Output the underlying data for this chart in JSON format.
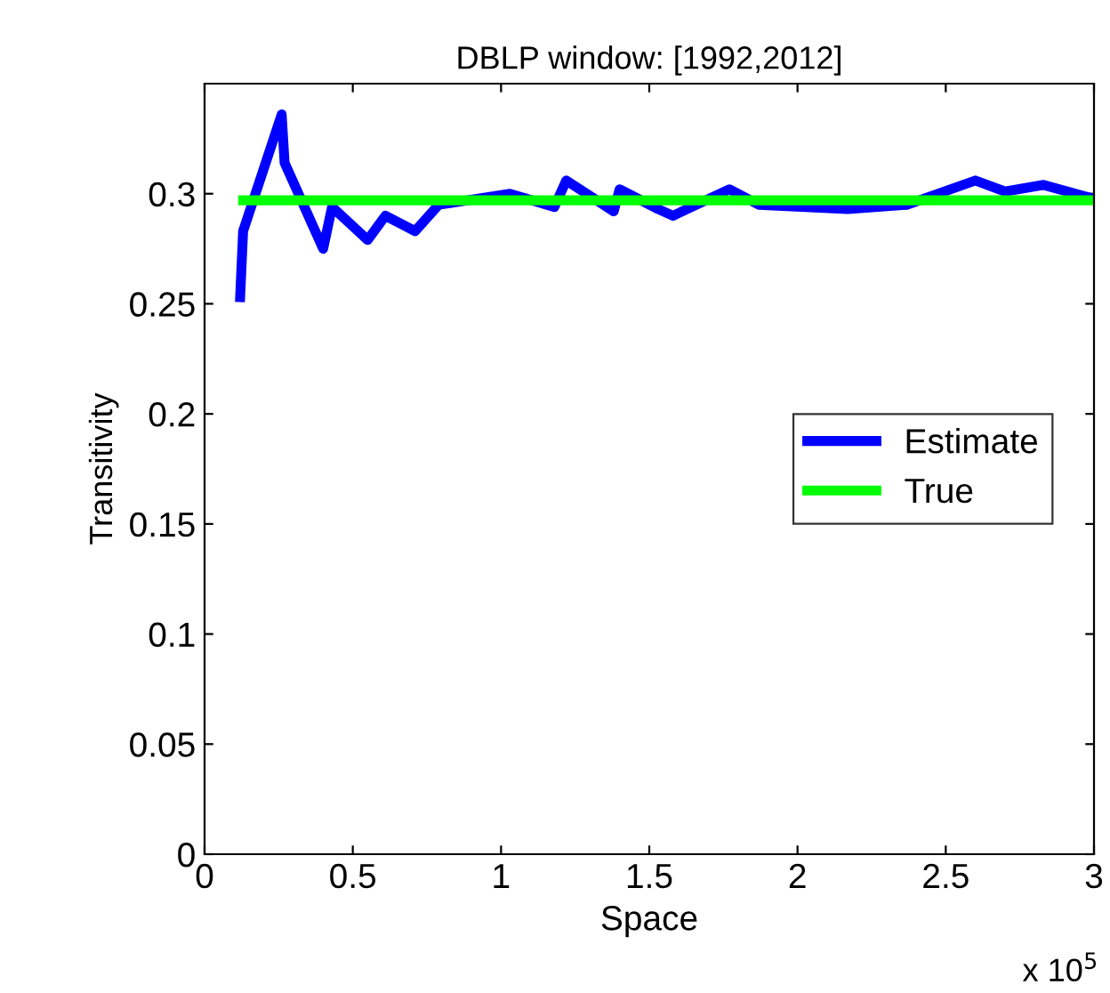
{
  "chart_data": {
    "type": "line",
    "title": "DBLP window: [1992,2012]",
    "xlabel": "Space",
    "ylabel": "Transitivity",
    "series": [
      {
        "name": "Estimate",
        "color": "#0000ff",
        "x": [
          0.12,
          0.13,
          0.26,
          0.27,
          0.4,
          0.43,
          0.55,
          0.61,
          0.71,
          0.79,
          1.03,
          1.18,
          1.22,
          1.38,
          1.4,
          1.53,
          1.58,
          1.77,
          1.87,
          2.17,
          2.37,
          2.6,
          2.7,
          2.83,
          2.99
        ],
        "values": [
          0.253,
          0.283,
          0.336,
          0.314,
          0.275,
          0.294,
          0.279,
          0.29,
          0.283,
          0.295,
          0.3,
          0.294,
          0.306,
          0.292,
          0.302,
          0.293,
          0.29,
          0.302,
          0.295,
          0.293,
          0.295,
          0.306,
          0.301,
          0.304,
          0.298
        ]
      },
      {
        "name": "True",
        "color": "#00ff00",
        "x": [
          0.13,
          3.0
        ],
        "values": [
          0.297,
          0.297
        ]
      }
    ],
    "xlim": [
      0,
      3
    ],
    "xticks": [
      0,
      0.5,
      1,
      1.5,
      2,
      2.5,
      3
    ],
    "ylim": [
      0,
      0.35
    ],
    "yticks": [
      0,
      0.05,
      0.1,
      0.15,
      0.2,
      0.25,
      0.3
    ],
    "annotations": [
      "x 10$^{5}$"
    ],
    "legend": "right",
    "grid": false,
    "marker": "none",
    "line_style": "solid"
  }
}
